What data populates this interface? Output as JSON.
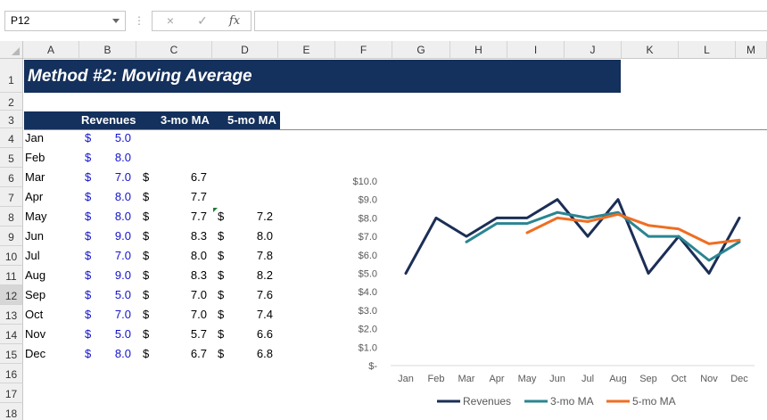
{
  "name_box": "P12",
  "formula_bar": {
    "value": "",
    "cancel_icon": "×",
    "enter_icon": "✓",
    "fx_label": "fx"
  },
  "columns": [
    "A",
    "B",
    "C",
    "D",
    "E",
    "F",
    "G",
    "H",
    "I",
    "J",
    "K",
    "L",
    "M"
  ],
  "rows": [
    "1",
    "2",
    "3",
    "4",
    "5",
    "6",
    "7",
    "8",
    "9",
    "10",
    "11",
    "12",
    "13",
    "14",
    "15",
    "16",
    "17",
    "18"
  ],
  "selected_row": "12",
  "sheet": {
    "title": "Method #2: Moving Average",
    "headers": {
      "revenues": "Revenues",
      "ma3": "3-mo MA",
      "ma5": "5-mo MA"
    },
    "currency": "$",
    "data_rows": [
      {
        "month": "Jan",
        "revenue": "5.0",
        "ma3": "",
        "ma5": ""
      },
      {
        "month": "Feb",
        "revenue": "8.0",
        "ma3": "",
        "ma5": ""
      },
      {
        "month": "Mar",
        "revenue": "7.0",
        "ma3": "6.7",
        "ma5": ""
      },
      {
        "month": "Apr",
        "revenue": "8.0",
        "ma3": "7.7",
        "ma5": ""
      },
      {
        "month": "May",
        "revenue": "8.0",
        "ma3": "7.7",
        "ma5": "7.2"
      },
      {
        "month": "Jun",
        "revenue": "9.0",
        "ma3": "8.3",
        "ma5": "8.0"
      },
      {
        "month": "Jul",
        "revenue": "7.0",
        "ma3": "8.0",
        "ma5": "7.8"
      },
      {
        "month": "Aug",
        "revenue": "9.0",
        "ma3": "8.3",
        "ma5": "8.2"
      },
      {
        "month": "Sep",
        "revenue": "5.0",
        "ma3": "7.0",
        "ma5": "7.6"
      },
      {
        "month": "Oct",
        "revenue": "7.0",
        "ma3": "7.0",
        "ma5": "7.4"
      },
      {
        "month": "Nov",
        "revenue": "5.0",
        "ma3": "5.7",
        "ma5": "6.6"
      },
      {
        "month": "Dec",
        "revenue": "8.0",
        "ma3": "6.7",
        "ma5": "6.8"
      }
    ]
  },
  "chart_data": {
    "type": "line",
    "categories": [
      "Jan",
      "Feb",
      "Mar",
      "Apr",
      "May",
      "Jun",
      "Jul",
      "Aug",
      "Sep",
      "Oct",
      "Nov",
      "Dec"
    ],
    "series": [
      {
        "name": "Revenues",
        "color": "#1b2e56",
        "values": [
          5.0,
          8.0,
          7.0,
          8.0,
          8.0,
          9.0,
          7.0,
          9.0,
          5.0,
          7.0,
          5.0,
          8.0
        ]
      },
      {
        "name": "3-mo MA",
        "color": "#2a8591",
        "values": [
          null,
          null,
          6.7,
          7.7,
          7.7,
          8.3,
          8.0,
          8.3,
          7.0,
          7.0,
          5.7,
          6.7
        ]
      },
      {
        "name": "5-mo MA",
        "color": "#ef6e22",
        "values": [
          null,
          null,
          null,
          null,
          7.2,
          8.0,
          7.8,
          8.2,
          7.6,
          7.4,
          6.6,
          6.8
        ]
      }
    ],
    "ylim": [
      0,
      10
    ],
    "yticks": [
      0,
      1,
      2,
      3,
      4,
      5,
      6,
      7,
      8,
      9,
      10
    ],
    "ytick_labels": [
      "$-",
      "$1.0",
      "$2.0",
      "$3.0",
      "$4.0",
      "$5.0",
      "$6.0",
      "$7.0",
      "$8.0",
      "$9.0",
      "$10.0"
    ],
    "grid": false,
    "legend": "bottom"
  }
}
